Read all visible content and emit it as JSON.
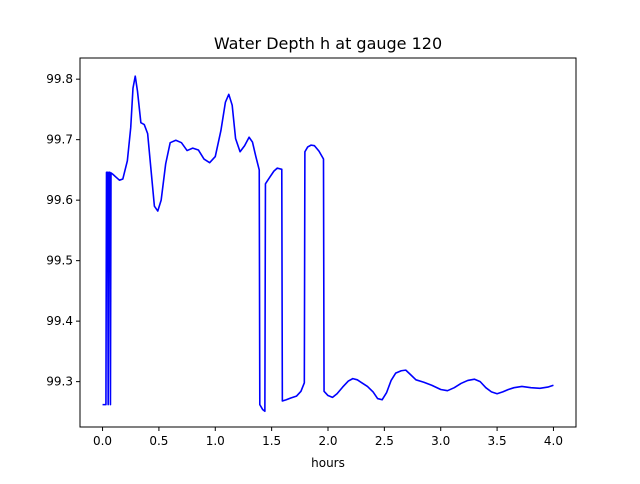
{
  "chart_data": {
    "type": "line",
    "title": "Water Depth h at gauge 120",
    "xlabel": "hours",
    "ylabel": "",
    "xlim": [
      -0.2,
      4.2
    ],
    "ylim": [
      99.225,
      99.835
    ],
    "xticks": [
      0.0,
      0.5,
      1.0,
      1.5,
      2.0,
      2.5,
      3.0,
      3.5,
      4.0
    ],
    "xtick_labels": [
      "0.0",
      "0.5",
      "1.0",
      "1.5",
      "2.0",
      "2.5",
      "3.0",
      "3.5",
      "4.0"
    ],
    "yticks": [
      99.3,
      99.4,
      99.5,
      99.6,
      99.7,
      99.8
    ],
    "ytick_labels": [
      "99.3",
      "99.4",
      "99.5",
      "99.6",
      "99.7",
      "99.8"
    ],
    "grid": false,
    "legend": "none",
    "colors": {
      "line": "#0000ff",
      "axes": "#000000",
      "background": "#ffffff"
    },
    "series": [
      {
        "values": [
          [
            0.0,
            99.262
          ],
          [
            0.03,
            99.262
          ],
          [
            0.035,
            99.646
          ],
          [
            0.045,
            99.646
          ],
          [
            0.05,
            99.262
          ],
          [
            0.055,
            99.646
          ],
          [
            0.065,
            99.646
          ],
          [
            0.07,
            99.262
          ],
          [
            0.075,
            99.645
          ],
          [
            0.09,
            99.643
          ],
          [
            0.12,
            99.638
          ],
          [
            0.15,
            99.633
          ],
          [
            0.18,
            99.635
          ],
          [
            0.22,
            99.665
          ],
          [
            0.25,
            99.72
          ],
          [
            0.27,
            99.785
          ],
          [
            0.29,
            99.805
          ],
          [
            0.31,
            99.78
          ],
          [
            0.34,
            99.728
          ],
          [
            0.37,
            99.725
          ],
          [
            0.4,
            99.71
          ],
          [
            0.43,
            99.65
          ],
          [
            0.46,
            99.59
          ],
          [
            0.49,
            99.582
          ],
          [
            0.52,
            99.6
          ],
          [
            0.56,
            99.66
          ],
          [
            0.6,
            99.695
          ],
          [
            0.65,
            99.699
          ],
          [
            0.7,
            99.695
          ],
          [
            0.75,
            99.682
          ],
          [
            0.8,
            99.686
          ],
          [
            0.85,
            99.683
          ],
          [
            0.9,
            99.668
          ],
          [
            0.95,
            99.662
          ],
          [
            1.0,
            99.672
          ],
          [
            1.05,
            99.715
          ],
          [
            1.09,
            99.762
          ],
          [
            1.12,
            99.775
          ],
          [
            1.15,
            99.757
          ],
          [
            1.18,
            99.702
          ],
          [
            1.22,
            99.68
          ],
          [
            1.26,
            99.69
          ],
          [
            1.3,
            99.704
          ],
          [
            1.33,
            99.696
          ],
          [
            1.36,
            99.672
          ],
          [
            1.39,
            99.65
          ],
          [
            1.395,
            99.262
          ],
          [
            1.42,
            99.254
          ],
          [
            1.44,
            99.251
          ],
          [
            1.445,
            99.627
          ],
          [
            1.48,
            99.637
          ],
          [
            1.52,
            99.648
          ],
          [
            1.55,
            99.653
          ],
          [
            1.59,
            99.651
          ],
          [
            1.595,
            99.268
          ],
          [
            1.63,
            99.27
          ],
          [
            1.67,
            99.273
          ],
          [
            1.72,
            99.276
          ],
          [
            1.76,
            99.284
          ],
          [
            1.79,
            99.298
          ],
          [
            1.795,
            99.68
          ],
          [
            1.82,
            99.688
          ],
          [
            1.85,
            99.691
          ],
          [
            1.88,
            99.69
          ],
          [
            1.92,
            99.681
          ],
          [
            1.96,
            99.668
          ],
          [
            1.965,
            99.284
          ],
          [
            2.0,
            99.277
          ],
          [
            2.04,
            99.274
          ],
          [
            2.08,
            99.28
          ],
          [
            2.13,
            99.291
          ],
          [
            2.18,
            99.301
          ],
          [
            2.22,
            99.305
          ],
          [
            2.26,
            99.303
          ],
          [
            2.3,
            99.298
          ],
          [
            2.35,
            99.292
          ],
          [
            2.4,
            99.283
          ],
          [
            2.44,
            99.272
          ],
          [
            2.48,
            99.27
          ],
          [
            2.52,
            99.282
          ],
          [
            2.56,
            99.302
          ],
          [
            2.6,
            99.314
          ],
          [
            2.65,
            99.318
          ],
          [
            2.69,
            99.319
          ],
          [
            2.73,
            99.312
          ],
          [
            2.78,
            99.303
          ],
          [
            2.85,
            99.299
          ],
          [
            2.92,
            99.294
          ],
          [
            3.0,
            99.287
          ],
          [
            3.06,
            99.285
          ],
          [
            3.12,
            99.29
          ],
          [
            3.18,
            99.297
          ],
          [
            3.24,
            99.302
          ],
          [
            3.3,
            99.304
          ],
          [
            3.35,
            99.3
          ],
          [
            3.4,
            99.29
          ],
          [
            3.45,
            99.283
          ],
          [
            3.5,
            99.28
          ],
          [
            3.55,
            99.283
          ],
          [
            3.6,
            99.287
          ],
          [
            3.65,
            99.29
          ],
          [
            3.72,
            99.292
          ],
          [
            3.8,
            99.29
          ],
          [
            3.88,
            99.289
          ],
          [
            3.95,
            99.291
          ],
          [
            4.0,
            99.294
          ]
        ]
      }
    ]
  }
}
